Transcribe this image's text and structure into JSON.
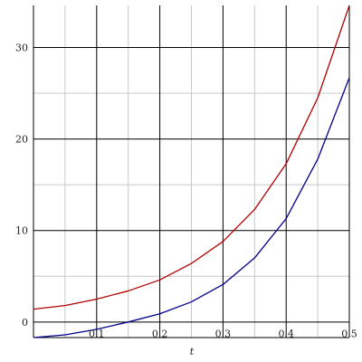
{
  "chart_data": {
    "type": "line",
    "title": "",
    "xlabel": "t",
    "ylabel": "",
    "xlim": [
      0,
      0.5
    ],
    "ylim": [
      -1.7,
      34.6
    ],
    "grid": true,
    "x_ticks": [
      0.1,
      0.2,
      0.3,
      0.4,
      0.5
    ],
    "x_tick_labels": [
      "0.1",
      "0.2",
      "0.3",
      "0.4",
      "0.5"
    ],
    "x_minor_ticks": [
      0.05,
      0.15,
      0.25,
      0.35,
      0.45
    ],
    "y_ticks": [
      0,
      10,
      20,
      30
    ],
    "y_tick_labels": [
      "0",
      "10",
      "20",
      "30"
    ],
    "y_minor_ticks": [
      5,
      15,
      25
    ],
    "colors": {
      "red": "#b00000",
      "blue": "#00008b",
      "major_grid": "#000000",
      "minor_grid": "#c8c8c8"
    },
    "series": [
      {
        "color": "red",
        "x": [
          0,
          0.05,
          0.1,
          0.15,
          0.2,
          0.25,
          0.3,
          0.35,
          0.4,
          0.45,
          0.5
        ],
        "y": [
          1.4,
          1.8,
          2.5,
          3.4,
          4.6,
          6.4,
          8.8,
          12.3,
          17.3,
          24.5,
          34.6
        ]
      },
      {
        "color": "blue",
        "x": [
          0,
          0.05,
          0.1,
          0.15,
          0.2,
          0.25,
          0.3,
          0.35,
          0.4,
          0.45,
          0.5
        ],
        "y": [
          -1.7,
          -1.4,
          -0.8,
          0.0,
          0.9,
          2.2,
          4.1,
          7.0,
          11.3,
          17.8,
          26.7
        ]
      }
    ]
  }
}
